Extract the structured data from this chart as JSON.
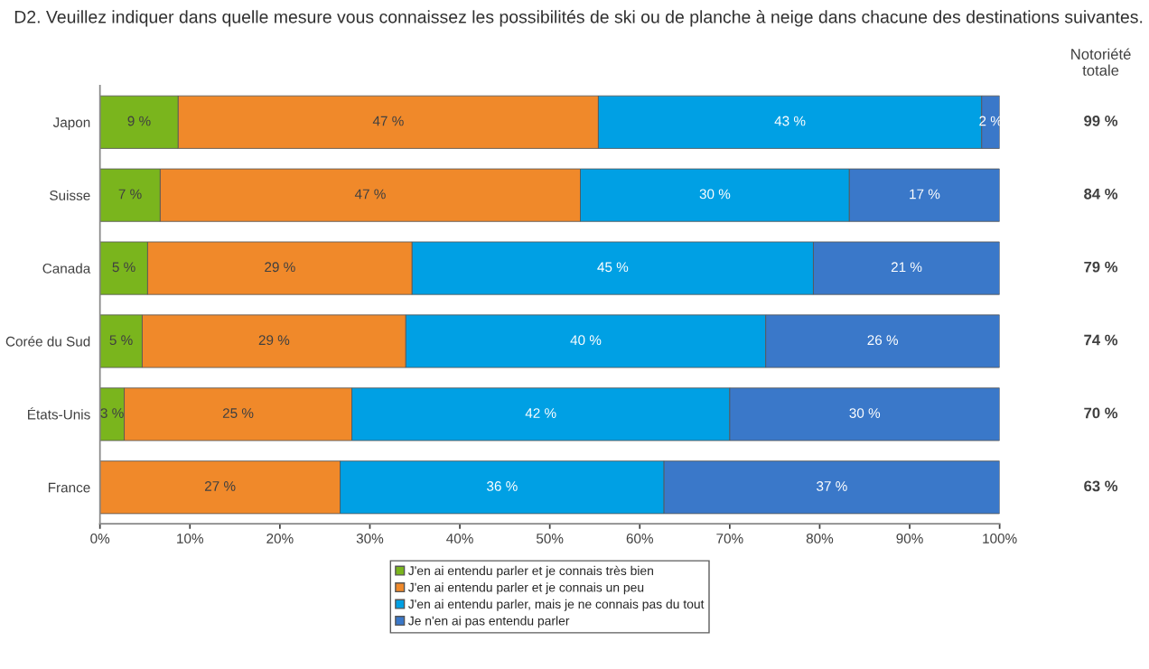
{
  "chart_data": {
    "type": "bar",
    "orientation": "horizontal",
    "stacked": true,
    "title": "D2. Veuillez indiquer dans quelle mesure vous connaissez les possibilités de ski ou de planche à neige dans chacune des destinations suivantes.",
    "categories": [
      "Japon",
      "Suisse",
      "Canada",
      "Corée du Sud",
      "États-Unis",
      "France"
    ],
    "series": [
      {
        "name": "J'en ai entendu parler et je connais très bien",
        "color": "#7ab51d",
        "values": [
          8.7,
          6.7,
          5.3,
          4.7,
          2.7,
          null
        ],
        "value_labels": [
          "9 %",
          "7 %",
          "5 %",
          "5 %",
          "3 %",
          null
        ]
      },
      {
        "name": "J'en ai entendu parler et je connais un peu",
        "color": "#f0892a",
        "values": [
          46.7,
          46.7,
          29.4,
          29.3,
          25.3,
          26.7
        ],
        "value_labels": [
          "47 %",
          "47 %",
          "29 %",
          "29 %",
          "25 %",
          "27 %"
        ]
      },
      {
        "name": "J'en ai entendu parler, mais je ne connais pas du tout",
        "color": "#00a0e4",
        "values": [
          42.6,
          29.9,
          44.6,
          40.0,
          42.0,
          36.0
        ],
        "value_labels": [
          "43 %",
          "30 %",
          "45 %",
          "40 %",
          "42 %",
          "36 %"
        ]
      },
      {
        "name": "Je n'en ai pas entendu parler",
        "color": "#3a78c9",
        "values": [
          2.0,
          16.7,
          20.7,
          26.0,
          30.0,
          37.3
        ],
        "value_labels": [
          "2 %",
          "17 %",
          "21 %",
          "26 %",
          "30 %",
          "37 %"
        ]
      }
    ],
    "annotations": [
      "Notoriété totale",
      "99 %",
      "84 %",
      "79 %",
      "74 %",
      "70 %",
      "63 %"
    ],
    "xlim": [
      0,
      100
    ],
    "xticks": [
      {
        "value": 0,
        "label": "0%"
      },
      {
        "value": 10,
        "label": "10%"
      },
      {
        "value": 20,
        "label": "20%"
      },
      {
        "value": 30,
        "label": "30%"
      },
      {
        "value": 40,
        "label": "40%"
      },
      {
        "value": 50,
        "label": "50%"
      },
      {
        "value": 60,
        "label": "60%"
      },
      {
        "value": 70,
        "label": "70%"
      },
      {
        "value": 80,
        "label": "80%"
      },
      {
        "value": 90,
        "label": "90%"
      },
      {
        "value": 100,
        "label": "100%"
      }
    ],
    "grid": false,
    "legend": "bottom"
  }
}
